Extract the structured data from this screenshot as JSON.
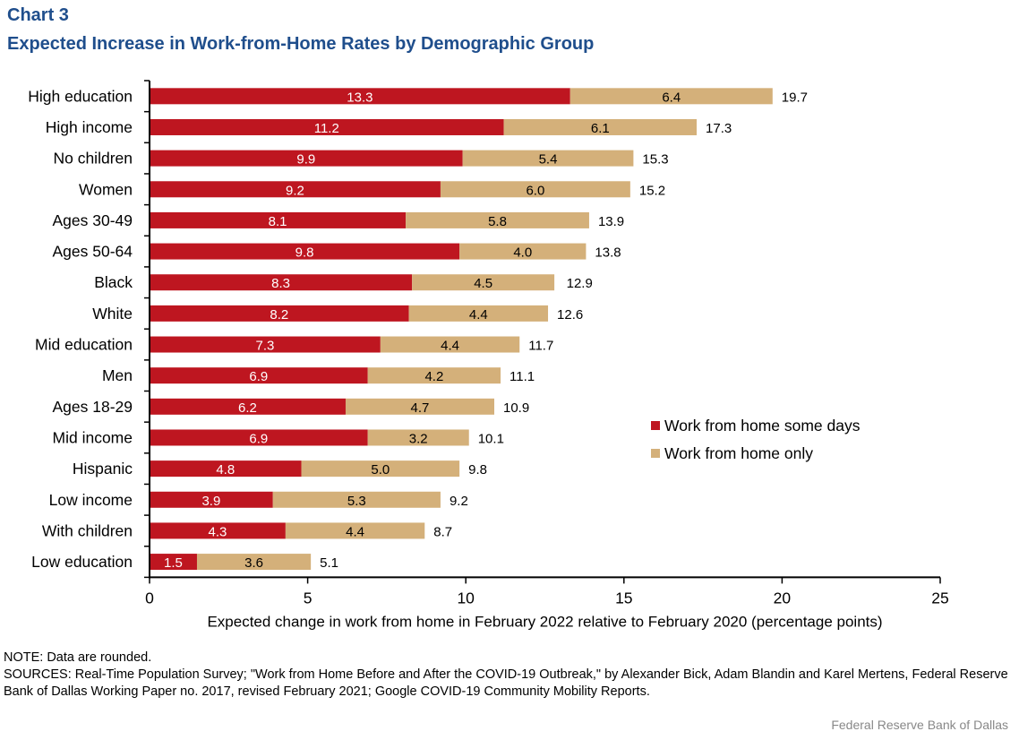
{
  "chart_data": {
    "type": "bar",
    "orientation": "horizontal",
    "stacked": true,
    "title": "Chart 3",
    "subtitle": "Expected Increase in Work-from-Home  Rates by Demographic Group",
    "xlabel": "Expected change  in work from home in February 2022 relative to February 2020 (percentage points)",
    "ylabel": "",
    "xlim": [
      0,
      25
    ],
    "xticks": [
      0,
      5,
      10,
      15,
      20,
      25
    ],
    "grid": false,
    "legend_position": "right",
    "categories": [
      "High education",
      "High income",
      "No children",
      "Women",
      "Ages 30-49",
      "Ages 50-64",
      "Black",
      "White",
      "Mid education",
      "Men",
      "Ages 18-29",
      "Mid income",
      "Hispanic",
      "Low income",
      "With children",
      "Low education"
    ],
    "series": [
      {
        "name": "Work from home some days",
        "color": "#be1620",
        "values": [
          13.3,
          11.2,
          9.9,
          9.2,
          8.1,
          9.8,
          8.3,
          8.2,
          7.3,
          6.9,
          6.2,
          6.9,
          4.8,
          3.9,
          4.3,
          1.5
        ]
      },
      {
        "name": "Work from home only",
        "color": "#d4b07a",
        "values": [
          6.4,
          6.1,
          5.4,
          6.0,
          5.8,
          4.0,
          4.5,
          4.4,
          4.4,
          4.2,
          4.7,
          3.2,
          5.0,
          5.3,
          4.4,
          3.6
        ]
      }
    ],
    "totals": [
      19.7,
      17.3,
      15.3,
      15.2,
      13.9,
      13.8,
      12.9,
      12.6,
      11.7,
      11.1,
      10.9,
      10.1,
      9.8,
      9.2,
      8.7,
      5.1
    ]
  },
  "notes": {
    "note": "NOTE:  Data are rounded.",
    "sources": "SOURCES: Real-Time Population Survey; \"Work from Home Before and After the COVID-19 Outbreak,\" by Alexander Bick, Adam Blandin and Karel Mertens, Federal Reserve Bank of Dallas Working Paper no. 2017, revised February 2021; Google COVID-19 Community Mobility Reports."
  },
  "credit": "Federal Reserve  Bank of Dallas"
}
